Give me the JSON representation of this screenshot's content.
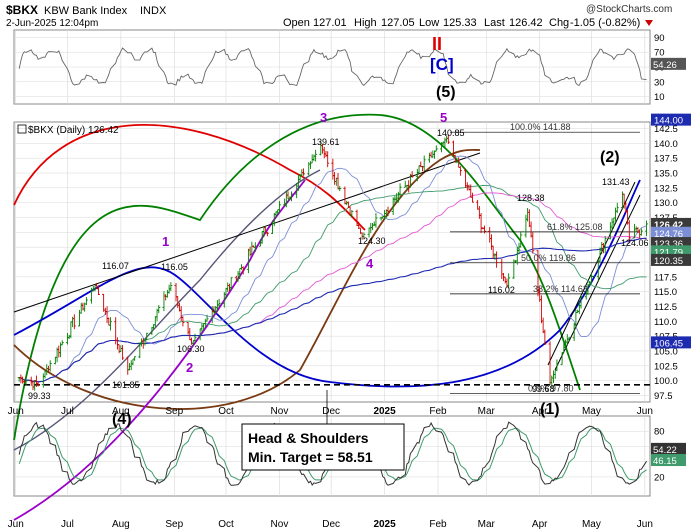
{
  "header": {
    "symbol": "$BKX",
    "name": "KBW Bank Index",
    "exchange": "INDX",
    "watermark": "@StockCharts.com",
    "datetime": "2-Jun-2025 12:04pm",
    "open_label": "Open",
    "open": "127.01",
    "high_label": "High",
    "high": "127.05",
    "low_label": "Low",
    "low": "125.33",
    "last_label": "Last",
    "last": "126.42",
    "chg_label": "Chg",
    "chg": "-1.05 (-0.82%)"
  },
  "rsi_top": {
    "ticks": [
      "90",
      "70",
      "50",
      "30",
      "10"
    ],
    "current_label": "54.26"
  },
  "main_panel": {
    "legend": "$BKX (Daily) 126.42",
    "ticks": [
      "142.5",
      "140.0",
      "137.5",
      "135.0",
      "132.5",
      "130.0",
      "127.5",
      "125.0",
      "122.5",
      "120.0",
      "117.5",
      "115.0",
      "112.5",
      "110.0",
      "107.5",
      "105.0",
      "102.5",
      "100.0",
      "97.5"
    ],
    "right_labels": [
      "144.00",
      "126.42",
      "124.76",
      "123.36",
      "121.79",
      "120.35",
      "106.45"
    ],
    "fib_labels": [
      "100.0% 141.88",
      "61.8% 125.08",
      "50.0% 119.86",
      "38.2% 114.63",
      "0.0% 97.80"
    ],
    "price_labels": [
      "140.85",
      "139.61",
      "131.43",
      "128.38",
      "124.30",
      "124.06",
      "116.07",
      "116.05",
      "116.02",
      "106.30",
      "101.85",
      "99.33",
      "99.68"
    ],
    "wave_labels": [
      "II",
      "[C]",
      "(5)",
      "5",
      "3",
      "1",
      "2",
      "4",
      "(2)",
      "(4)",
      "(1)"
    ],
    "annotation": [
      "Head & Shoulders",
      "Min. Target = 58.51"
    ]
  },
  "x_axis": {
    "labels": [
      "Jun",
      "Jul",
      "Aug",
      "Sep",
      "Oct",
      "Nov",
      "Dec",
      "2025",
      "Feb",
      "Mar",
      "Apr",
      "May",
      "Jun"
    ]
  },
  "stoch_bottom": {
    "ticks": [
      "80",
      "60",
      "40",
      "20"
    ],
    "current_labels": [
      "54.22",
      "46.15"
    ]
  },
  "colors": {
    "up": "#008000",
    "down": "#cc0000",
    "ink": "#000000",
    "grid": "#d8d8d8",
    "label_bg": "#3a3a3a",
    "wave_red": "#e00000",
    "wave_blue": "#0000cc",
    "wave_purple": "#9900cc"
  },
  "chart_data": {
    "type": "candlestick",
    "title": "$BKX KBW Bank Index INDX",
    "price_range": [
      97.5,
      143.0
    ],
    "key_points": [
      {
        "date": "2024-06-03",
        "close": 100.5
      },
      {
        "date": "2024-06-14",
        "close": 99.33
      },
      {
        "date": "2024-07-17",
        "close": 116.07
      },
      {
        "date": "2024-08-05",
        "close": 101.85
      },
      {
        "date": "2024-08-30",
        "close": 116.05
      },
      {
        "date": "2024-09-11",
        "close": 106.3
      },
      {
        "date": "2024-11-25",
        "close": 139.61
      },
      {
        "date": "2024-12-19",
        "close": 124.3
      },
      {
        "date": "2025-02-06",
        "close": 140.85
      },
      {
        "date": "2025-03-13",
        "close": 116.02
      },
      {
        "date": "2025-03-25",
        "close": 128.38
      },
      {
        "date": "2025-04-07",
        "close": 99.68
      },
      {
        "date": "2025-05-19",
        "close": 131.43
      },
      {
        "date": "2025-05-23",
        "close": 124.06
      },
      {
        "date": "2025-06-02",
        "close": 126.42
      }
    ],
    "fib_levels": [
      {
        "pct": "100.0%",
        "value": 141.88
      },
      {
        "pct": "61.8%",
        "value": 125.08
      },
      {
        "pct": "50.0%",
        "value": 119.86
      },
      {
        "pct": "38.2%",
        "value": 114.63
      },
      {
        "pct": "0.0%",
        "value": 97.8
      }
    ],
    "right_axis_markers": [
      144.0,
      126.42,
      124.76,
      123.36,
      121.79,
      120.35,
      106.45
    ],
    "rsi_current": 54.26,
    "stoch_current": [
      54.22,
      46.15
    ]
  }
}
